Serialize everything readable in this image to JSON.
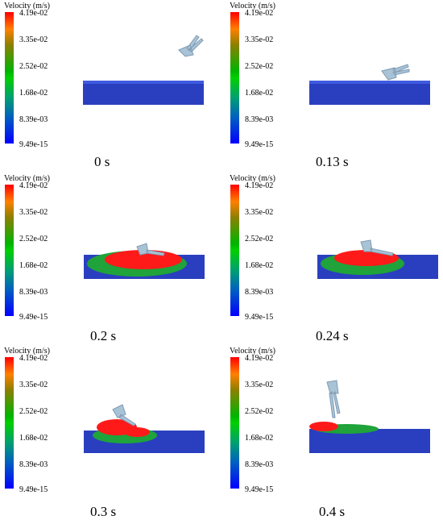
{
  "colorbar": {
    "title": "Velocity (m/s)",
    "ticks": [
      "4.19e-02",
      "3.35e-02",
      "2.52e-02",
      "1.68e-02",
      "8.39e-03",
      "9.49e-15"
    ]
  },
  "panels": [
    {
      "time": "0 s"
    },
    {
      "time": "0.13 s"
    },
    {
      "time": "0.2 s"
    },
    {
      "time": "0.24 s"
    },
    {
      "time": "0.3 s"
    },
    {
      "time": "0.4 s"
    }
  ],
  "colors": {
    "bed": "#2a3fbf",
    "fast": "#ff1a1a",
    "mid": "#1fa33a",
    "fish": "#a9c3d6"
  }
}
